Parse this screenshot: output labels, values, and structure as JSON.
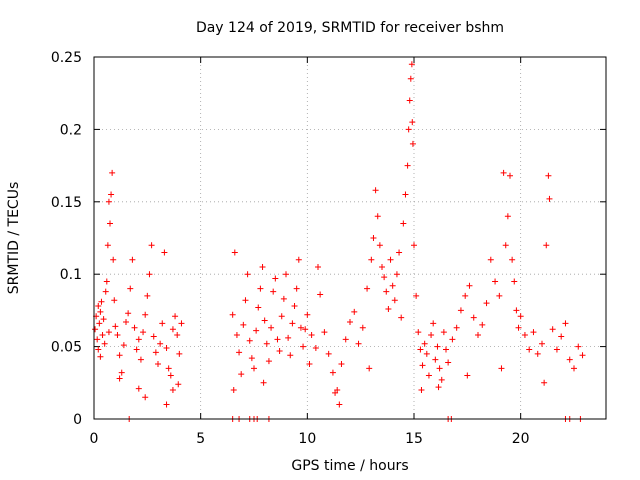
{
  "chart_data": {
    "type": "scatter",
    "title": "Day 124 of 2019, SRMTID for receiver bshm",
    "xlabel": "GPS time / hours",
    "ylabel": "SRMTID / TECUs",
    "xlim": [
      0,
      24
    ],
    "ylim": [
      0,
      0.25
    ],
    "xticks": [
      {
        "value": 0,
        "label": "0"
      },
      {
        "value": 5,
        "label": "5"
      },
      {
        "value": 10,
        "label": "10"
      },
      {
        "value": 15,
        "label": "15"
      },
      {
        "value": 20,
        "label": "20"
      }
    ],
    "yticks": [
      {
        "value": 0,
        "label": "0"
      },
      {
        "value": 0.05,
        "label": "0.05"
      },
      {
        "value": 0.1,
        "label": "0.1"
      },
      {
        "value": 0.15,
        "label": "0.15"
      },
      {
        "value": 0.2,
        "label": "0.2"
      },
      {
        "value": 0.25,
        "label": "0.25"
      }
    ],
    "grid": true,
    "marker": "+",
    "color": "#ff0000",
    "series": [
      {
        "name": "SRMTID",
        "points": [
          [
            0.05,
            0.062
          ],
          [
            0.1,
            0.071
          ],
          [
            0.15,
            0.055
          ],
          [
            0.2,
            0.048
          ],
          [
            0.25,
            0.066
          ],
          [
            0.3,
            0.074
          ],
          [
            0.35,
            0.081
          ],
          [
            0.4,
            0.058
          ],
          [
            0.45,
            0.069
          ],
          [
            0.5,
            0.052
          ],
          [
            0.55,
            0.088
          ],
          [
            0.6,
            0.095
          ],
          [
            0.65,
            0.12
          ],
          [
            0.7,
            0.15
          ],
          [
            0.75,
            0.135
          ],
          [
            0.8,
            0.155
          ],
          [
            0.85,
            0.17
          ],
          [
            0.9,
            0.11
          ],
          [
            0.95,
            0.082
          ],
          [
            1.0,
            0.064
          ],
          [
            1.1,
            0.058
          ],
          [
            1.2,
            0.044
          ],
          [
            1.3,
            0.032
          ],
          [
            1.4,
            0.051
          ],
          [
            1.5,
            0.067
          ],
          [
            1.6,
            0.073
          ],
          [
            1.7,
            0.09
          ],
          [
            1.8,
            0.11
          ],
          [
            1.9,
            0.063
          ],
          [
            2.0,
            0.048
          ],
          [
            2.1,
            0.055
          ],
          [
            2.2,
            0.041
          ],
          [
            2.3,
            0.06
          ],
          [
            2.4,
            0.072
          ],
          [
            2.5,
            0.085
          ],
          [
            2.6,
            0.1
          ],
          [
            2.7,
            0.12
          ],
          [
            2.8,
            0.057
          ],
          [
            2.9,
            0.046
          ],
          [
            3.0,
            0.038
          ],
          [
            3.1,
            0.052
          ],
          [
            3.2,
            0.066
          ],
          [
            3.3,
            0.115
          ],
          [
            3.4,
            0.049
          ],
          [
            3.5,
            0.035
          ],
          [
            3.6,
            0.03
          ],
          [
            3.7,
            0.062
          ],
          [
            3.8,
            0.071
          ],
          [
            3.9,
            0.058
          ],
          [
            4.0,
            0.045
          ],
          [
            2.1,
            0.021
          ],
          [
            2.4,
            0.015
          ],
          [
            3.4,
            0.01
          ],
          [
            3.7,
            0.02
          ],
          [
            1.2,
            0.028
          ],
          [
            0.3,
            0.043
          ],
          [
            0.2,
            0.078
          ],
          [
            4.1,
            0.066
          ],
          [
            3.95,
            0.024
          ],
          [
            0.7,
            0.06
          ],
          [
            6.5,
            0.072
          ],
          [
            6.6,
            0.115
          ],
          [
            6.7,
            0.058
          ],
          [
            6.8,
            0.046
          ],
          [
            6.9,
            0.031
          ],
          [
            7.0,
            0.065
          ],
          [
            7.1,
            0.082
          ],
          [
            7.2,
            0.1
          ],
          [
            7.3,
            0.054
          ],
          [
            7.4,
            0.042
          ],
          [
            7.5,
            0.035
          ],
          [
            7.6,
            0.061
          ],
          [
            7.7,
            0.077
          ],
          [
            7.8,
            0.09
          ],
          [
            7.9,
            0.105
          ],
          [
            8.0,
            0.068
          ],
          [
            8.1,
            0.052
          ],
          [
            8.2,
            0.04
          ],
          [
            8.3,
            0.063
          ],
          [
            8.4,
            0.088
          ],
          [
            8.5,
            0.097
          ],
          [
            8.6,
            0.055
          ],
          [
            8.7,
            0.047
          ],
          [
            8.8,
            0.071
          ],
          [
            8.9,
            0.083
          ],
          [
            9.0,
            0.1
          ],
          [
            9.1,
            0.056
          ],
          [
            9.2,
            0.044
          ],
          [
            9.3,
            0.066
          ],
          [
            9.4,
            0.078
          ],
          [
            9.5,
            0.09
          ],
          [
            9.6,
            0.11
          ],
          [
            9.7,
            0.063
          ],
          [
            9.8,
            0.05
          ],
          [
            9.9,
            0.062
          ],
          [
            10.0,
            0.072
          ],
          [
            10.2,
            0.058
          ],
          [
            10.4,
            0.049
          ],
          [
            10.5,
            0.105
          ],
          [
            10.6,
            0.086
          ],
          [
            10.8,
            0.06
          ],
          [
            11.0,
            0.045
          ],
          [
            11.2,
            0.032
          ],
          [
            11.4,
            0.02
          ],
          [
            11.5,
            0.01
          ],
          [
            11.6,
            0.038
          ],
          [
            11.8,
            0.055
          ],
          [
            12.0,
            0.067
          ],
          [
            12.2,
            0.074
          ],
          [
            12.4,
            0.052
          ],
          [
            12.6,
            0.063
          ],
          [
            12.8,
            0.09
          ],
          [
            13.0,
            0.11
          ],
          [
            13.1,
            0.125
          ],
          [
            13.2,
            0.158
          ],
          [
            13.3,
            0.14
          ],
          [
            13.4,
            0.12
          ],
          [
            13.5,
            0.105
          ],
          [
            13.6,
            0.098
          ],
          [
            13.7,
            0.088
          ],
          [
            13.8,
            0.076
          ],
          [
            13.9,
            0.11
          ],
          [
            14.0,
            0.092
          ],
          [
            14.1,
            0.082
          ],
          [
            14.2,
            0.1
          ],
          [
            14.3,
            0.115
          ],
          [
            14.4,
            0.07
          ],
          [
            14.5,
            0.135
          ],
          [
            14.6,
            0.155
          ],
          [
            14.7,
            0.175
          ],
          [
            14.75,
            0.2
          ],
          [
            14.8,
            0.22
          ],
          [
            14.85,
            0.235
          ],
          [
            14.9,
            0.245
          ],
          [
            14.92,
            0.205
          ],
          [
            14.95,
            0.19
          ],
          [
            15.0,
            0.12
          ],
          [
            15.1,
            0.085
          ],
          [
            15.2,
            0.06
          ],
          [
            15.3,
            0.048
          ],
          [
            15.4,
            0.037
          ],
          [
            15.5,
            0.052
          ],
          [
            15.6,
            0.045
          ],
          [
            15.7,
            0.03
          ],
          [
            15.8,
            0.058
          ],
          [
            15.9,
            0.066
          ],
          [
            16.0,
            0.041
          ],
          [
            16.1,
            0.05
          ],
          [
            16.2,
            0.035
          ],
          [
            16.3,
            0.027
          ],
          [
            16.4,
            0.06
          ],
          [
            16.5,
            0.048
          ],
          [
            16.6,
            0.039
          ],
          [
            16.8,
            0.055
          ],
          [
            17.0,
            0.063
          ],
          [
            17.2,
            0.075
          ],
          [
            17.4,
            0.085
          ],
          [
            17.6,
            0.092
          ],
          [
            17.8,
            0.07
          ],
          [
            18.0,
            0.058
          ],
          [
            18.2,
            0.065
          ],
          [
            18.4,
            0.08
          ],
          [
            18.6,
            0.11
          ],
          [
            18.8,
            0.095
          ],
          [
            19.0,
            0.085
          ],
          [
            19.2,
            0.17
          ],
          [
            19.3,
            0.12
          ],
          [
            19.4,
            0.14
          ],
          [
            19.5,
            0.168
          ],
          [
            19.6,
            0.11
          ],
          [
            19.7,
            0.095
          ],
          [
            19.8,
            0.075
          ],
          [
            19.9,
            0.063
          ],
          [
            20.0,
            0.071
          ],
          [
            20.2,
            0.058
          ],
          [
            20.4,
            0.048
          ],
          [
            20.6,
            0.06
          ],
          [
            20.8,
            0.045
          ],
          [
            21.0,
            0.052
          ],
          [
            21.2,
            0.12
          ],
          [
            21.3,
            0.168
          ],
          [
            21.35,
            0.152
          ],
          [
            21.5,
            0.062
          ],
          [
            21.7,
            0.048
          ],
          [
            21.9,
            0.057
          ],
          [
            22.1,
            0.066
          ],
          [
            22.3,
            0.041
          ],
          [
            22.5,
            0.035
          ],
          [
            22.7,
            0.05
          ],
          [
            22.9,
            0.044
          ],
          [
            6.55,
            0.02
          ],
          [
            7.95,
            0.025
          ],
          [
            10.1,
            0.038
          ],
          [
            11.3,
            0.018
          ],
          [
            12.9,
            0.035
          ],
          [
            15.35,
            0.02
          ],
          [
            16.15,
            0.022
          ],
          [
            17.5,
            0.03
          ],
          [
            19.1,
            0.035
          ],
          [
            21.1,
            0.025
          ]
        ]
      }
    ],
    "zero_markers_x": [
      1.65,
      6.5,
      6.8,
      7.3,
      7.5,
      7.65,
      8.2,
      16.6,
      16.75,
      22.1,
      22.3,
      22.8
    ]
  }
}
